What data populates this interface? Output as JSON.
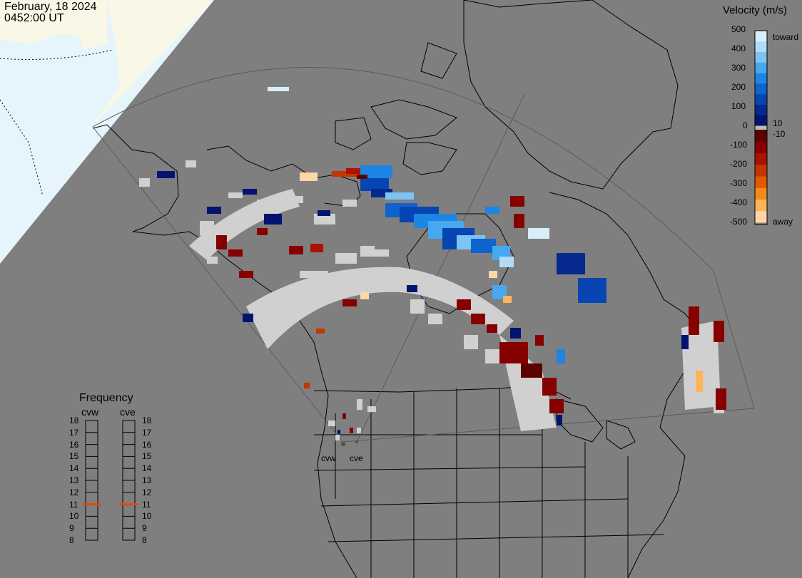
{
  "header": {
    "date": "February, 18 2024",
    "time": "0452:00 UT"
  },
  "velocity_scale": {
    "title": "Velocity (m/s)",
    "toward_label": "toward",
    "away_label": "away",
    "ticks": [
      "500",
      "400",
      "300",
      "200",
      "100",
      "10",
      "0",
      "-10",
      "-100",
      "-200",
      "-300",
      "-400",
      "-500"
    ],
    "colors_toward": [
      "#d7eefc",
      "#b0dcfa",
      "#7cc4f6",
      "#45a8f0",
      "#1d86e4",
      "#0d64cf",
      "#0845b2",
      "#05298e",
      "#021370"
    ],
    "colors_away": [
      "#5c0000",
      "#870000",
      "#a91300",
      "#c43500",
      "#df5a00",
      "#f28a1a",
      "#fdb45a",
      "#ffd6a8"
    ],
    "ground_color": "#d0d0d0"
  },
  "frequency_panel": {
    "title": "Frequency",
    "radars": [
      {
        "name": "cvw",
        "value_mhz": 11
      },
      {
        "name": "cve",
        "value_mhz": 11
      }
    ],
    "ticks": [
      "18",
      "17",
      "16",
      "15",
      "14",
      "13",
      "12",
      "11",
      "10",
      "9",
      "8"
    ],
    "indicator_color": "#e8440a"
  },
  "radar_labels": [
    "cvw",
    "cve"
  ],
  "map_colors": {
    "background": "#7f7f7f",
    "ocean_daylight": "#e6f4fb",
    "land_daylight": "#f9f8e6",
    "coast": "#000000",
    "fov_line": "#5a5a5a"
  }
}
